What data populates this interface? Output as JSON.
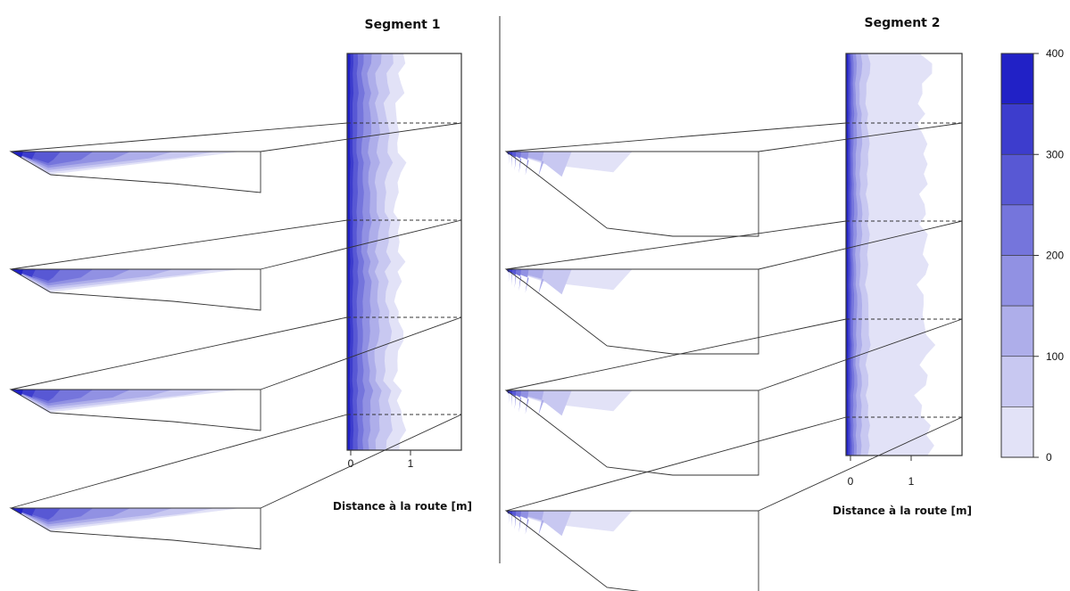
{
  "chart_data": {
    "type": "heatmap",
    "segments": [
      {
        "title": "Segment 1",
        "xlabel": "Distance à la route [m]",
        "x_ticks": [
          "0",
          "1"
        ],
        "xlim": [
          0,
          1.9
        ],
        "profile_count": 4,
        "depth_intensity": "high"
      },
      {
        "title": "Segment 2",
        "xlabel": "Distance à la route [m]",
        "x_ticks": [
          "0",
          "1"
        ],
        "xlim": [
          0,
          1.9
        ],
        "profile_count": 4,
        "depth_intensity": "low"
      }
    ],
    "colorbar": {
      "range": [
        0,
        400
      ],
      "step": 50,
      "tick_labels": [
        "400",
        "300",
        "200",
        "100",
        "0"
      ],
      "tick_values": [
        400,
        300,
        200,
        100,
        0
      ],
      "colors": [
        "#ffffff",
        "#e2e2f7",
        "#c8c8f1",
        "#aeaeea",
        "#9191e3",
        "#7575dc",
        "#5858d4",
        "#3d3dcd",
        "#2121c6"
      ]
    }
  }
}
